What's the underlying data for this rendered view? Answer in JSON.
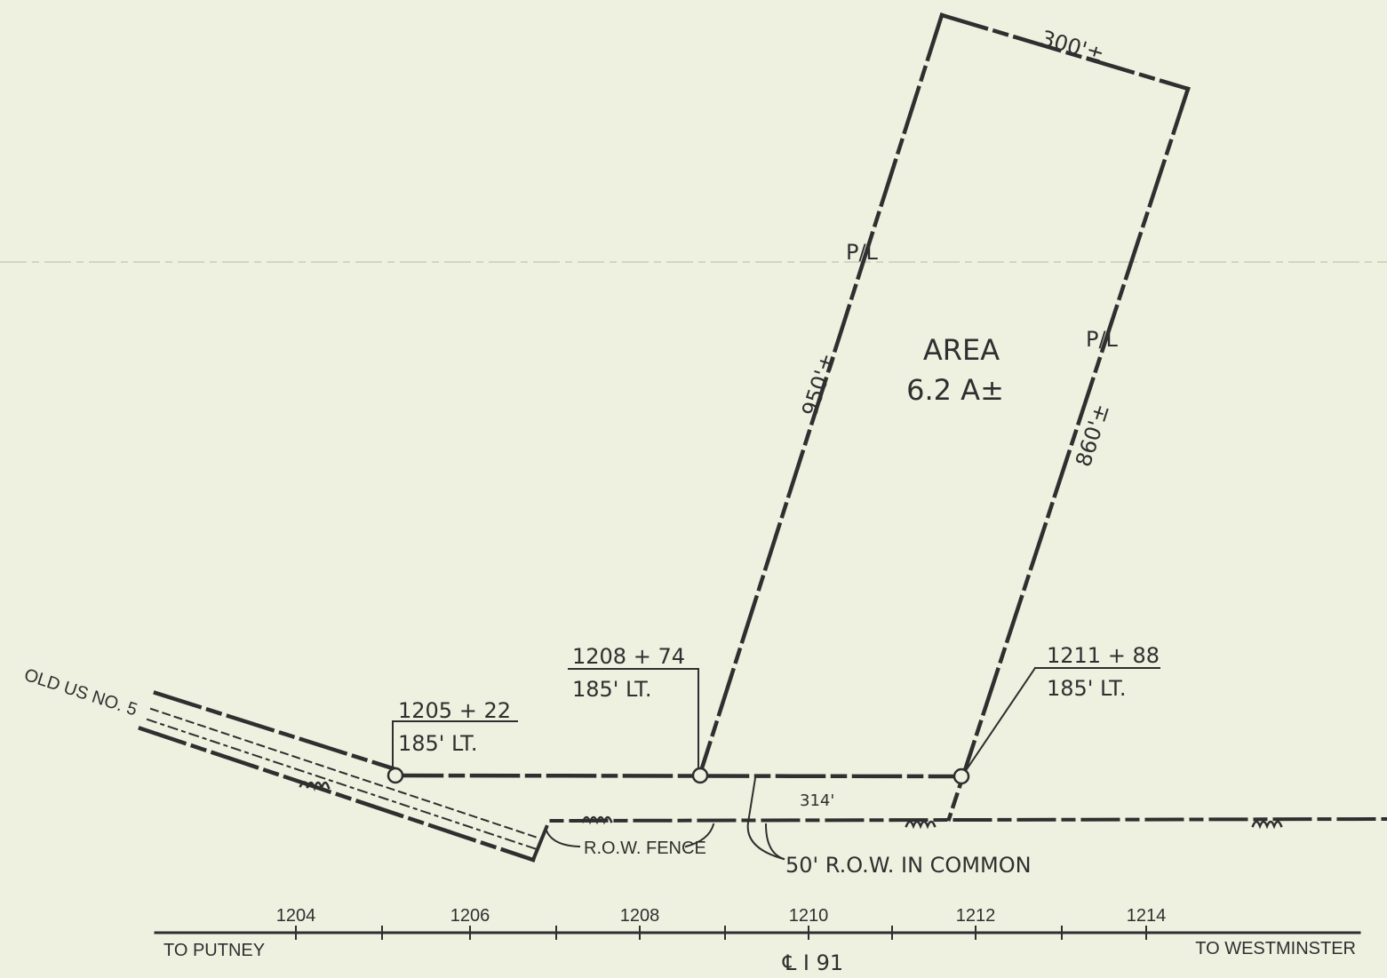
{
  "parcel": {
    "area_line1": "AREA",
    "area_line2": "6.2 A±",
    "top_dim": "300'±",
    "left_dim": "950'±",
    "right_dim": "860'±",
    "pl_left": "P/L",
    "pl_right": "P/L"
  },
  "stations": {
    "s1_top": "1205 + 22",
    "s1_bottom": "185'  LT.",
    "s2_top": "1208 + 74",
    "s2_bottom": "185'  LT.",
    "s3_top": "1211 + 88",
    "s3_bottom": "185'  LT."
  },
  "labels": {
    "old_road": "OLD  US  NO. 5",
    "frontage": "314'",
    "row_fence": "R.O.W. FENCE",
    "row_common": "50' R.O.W. IN COMMON",
    "to_left": "TO PUTNEY",
    "to_right": "TO WESTMINSTER",
    "centerline": "℄ I 91"
  },
  "ticks": [
    "1204",
    "1206",
    "1208",
    "1210",
    "1212",
    "1214"
  ]
}
